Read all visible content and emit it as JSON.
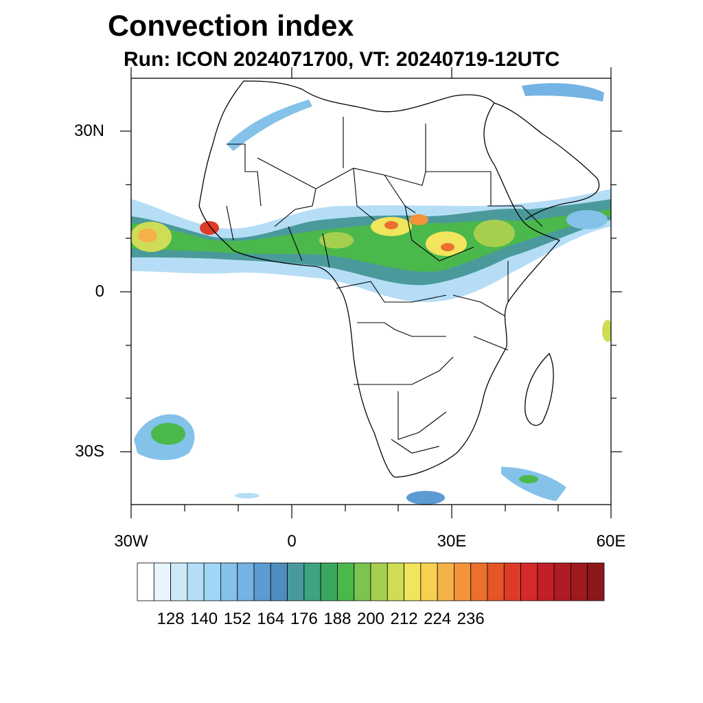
{
  "title": "Convection index",
  "subtitle": "Run: ICON 2024071700,  VT: 20240719-12UTC",
  "map": {
    "extent": {
      "lon_min": -30,
      "lon_max": 60,
      "lat_min": -40,
      "lat_max": 40
    },
    "lat_ticks": [
      {
        "value": 30,
        "label": "30N"
      },
      {
        "value": 0,
        "label": "0"
      },
      {
        "value": -30,
        "label": "30S"
      }
    ],
    "lon_ticks": [
      {
        "value": -30,
        "label": "30W"
      },
      {
        "value": 0,
        "label": "0"
      },
      {
        "value": 30,
        "label": "30E"
      },
      {
        "value": 60,
        "label": "60E"
      }
    ]
  },
  "colorbar": {
    "colors": [
      "#ffffff",
      "#e8f5fc",
      "#cde9f8",
      "#b5def6",
      "#a0d7f5",
      "#84c2ea",
      "#74b3e3",
      "#5b9ad2",
      "#4f8dbf",
      "#4a9a9c",
      "#3fa281",
      "#3aa75f",
      "#4bb84b",
      "#7dc351",
      "#a6cf4e",
      "#cfdc55",
      "#f0e55d",
      "#f8d050",
      "#f5b14a",
      "#f3943b",
      "#ec6f2e",
      "#e45527",
      "#dd3c27",
      "#d52a2a",
      "#c31f2a",
      "#b01c25",
      "#9e1a1f",
      "#8c181b"
    ],
    "labels": [
      "128",
      "140",
      "152",
      "164",
      "176",
      "188",
      "200",
      "212",
      "224",
      "236"
    ]
  }
}
